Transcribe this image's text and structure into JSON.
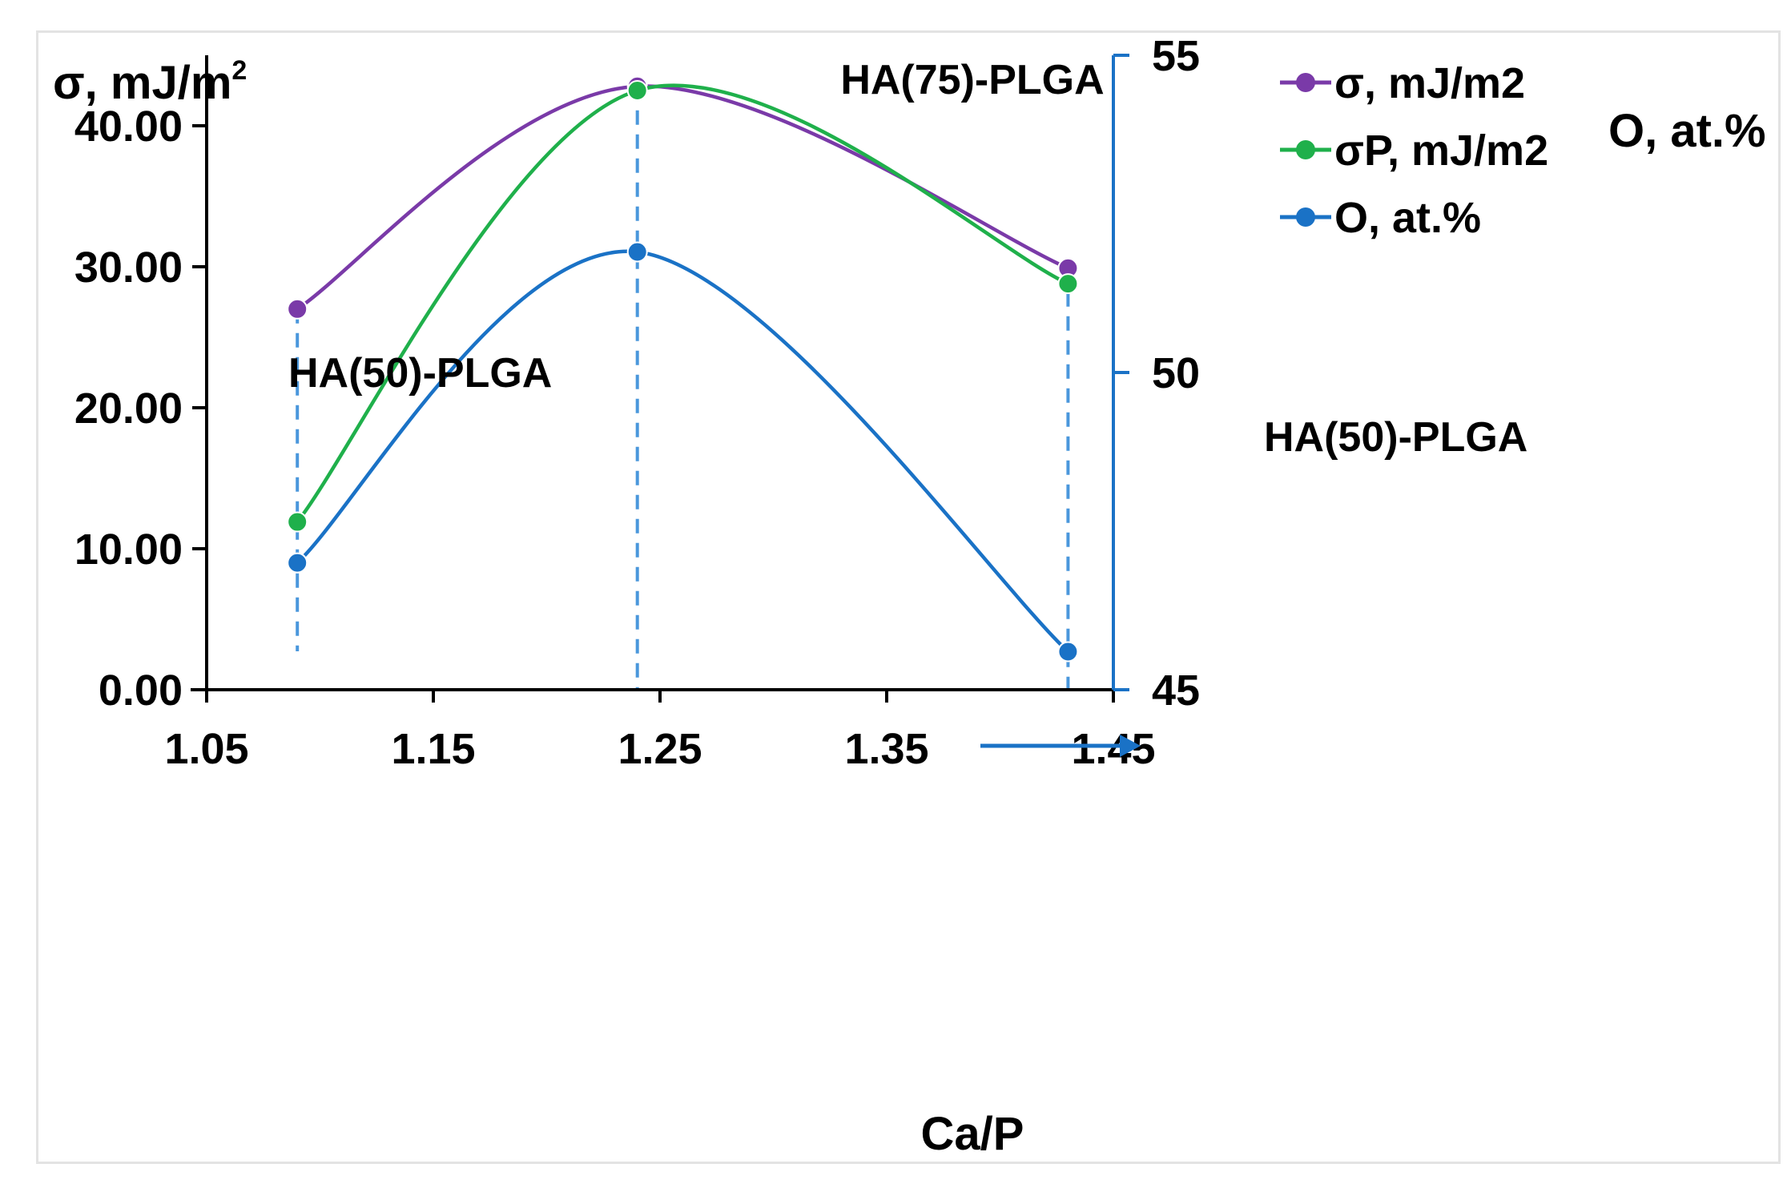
{
  "chart_data": {
    "type": "line",
    "xlabel": "Ca/P",
    "ylabel_left": "σ, mJ/m",
    "ylabel_left_sup": "2",
    "ylabel_right": "O, at.%",
    "xlim": [
      1.05,
      1.45
    ],
    "xticks": [
      "1.05",
      "1.15",
      "1.25",
      "1.35",
      "1.45"
    ],
    "ylim_left": [
      0,
      45
    ],
    "yticks_left": [
      "0.00",
      "10.00",
      "20.00",
      "30.00",
      "40.00"
    ],
    "ylim_right": [
      45,
      55
    ],
    "yticks_right": [
      "45",
      "50",
      "55"
    ],
    "x": [
      1.09,
      1.24,
      1.43
    ],
    "series": [
      {
        "name": "σ, mJ/m2",
        "axis": "left",
        "color": "#7a3aa8",
        "values": [
          27.0,
          42.8,
          29.9
        ]
      },
      {
        "name": "σP, mJ/m2",
        "axis": "left",
        "color": "#1fb04b",
        "values": [
          11.9,
          42.5,
          28.8
        ]
      },
      {
        "name": "O, at.%",
        "axis": "right",
        "color": "#1a72c6",
        "values": [
          47.0,
          51.9,
          45.6
        ]
      }
    ],
    "annotations": [
      {
        "text": "HA(50)-PLGA",
        "x": 1.09
      },
      {
        "text": "HA(75)-PLGA",
        "x": 1.24
      },
      {
        "text": "HA(50)-PLGA",
        "x": 1.43
      }
    ],
    "dashed_guides_x": [
      1.09,
      1.24,
      1.43
    ],
    "arrow": {
      "direction": "right",
      "points_to": "right-axis"
    },
    "legend_position": "top-right"
  }
}
